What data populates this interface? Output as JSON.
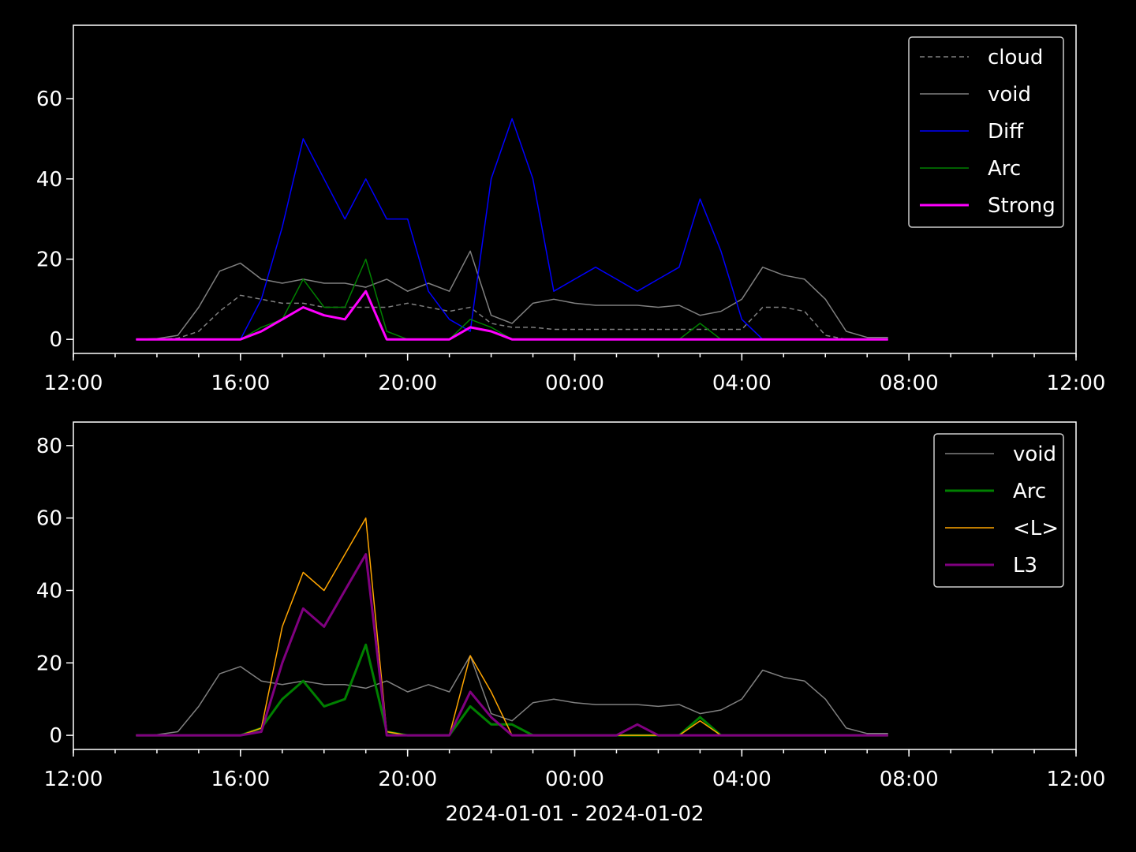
{
  "chart_data": [
    {
      "type": "line",
      "xlim": [
        "2024-01-01T12:00",
        "2024-01-02T12:00"
      ],
      "xticks": [
        {
          "value": "2024-01-01T12:00",
          "label": "12:00"
        },
        {
          "value": "2024-01-01T16:00",
          "label": "16:00"
        },
        {
          "value": "2024-01-01T20:00",
          "label": "20:00"
        },
        {
          "value": "2024-01-02T00:00",
          "label": "00:00"
        },
        {
          "value": "2024-01-02T04:00",
          "label": "04:00"
        },
        {
          "value": "2024-01-02T08:00",
          "label": "08:00"
        },
        {
          "value": "2024-01-02T12:00",
          "label": "12:00"
        }
      ],
      "ylim": [
        -3.5,
        78.3
      ],
      "yticks": [
        0,
        20,
        40,
        60
      ],
      "legend": "upper right",
      "x": [
        "2024-01-01T13:30",
        "2024-01-01T14:00",
        "2024-01-01T14:30",
        "2024-01-01T15:00",
        "2024-01-01T15:30",
        "2024-01-01T16:00",
        "2024-01-01T16:30",
        "2024-01-01T17:00",
        "2024-01-01T17:30",
        "2024-01-01T18:00",
        "2024-01-01T18:30",
        "2024-01-01T19:00",
        "2024-01-01T19:30",
        "2024-01-01T20:00",
        "2024-01-01T20:30",
        "2024-01-01T21:00",
        "2024-01-01T21:30",
        "2024-01-01T22:00",
        "2024-01-01T22:30",
        "2024-01-01T23:00",
        "2024-01-01T23:30",
        "2024-01-02T00:00",
        "2024-01-02T00:30",
        "2024-01-02T01:00",
        "2024-01-02T01:30",
        "2024-01-02T02:00",
        "2024-01-02T02:30",
        "2024-01-02T03:00",
        "2024-01-02T03:30",
        "2024-01-02T04:00",
        "2024-01-02T04:30",
        "2024-01-02T05:00",
        "2024-01-02T05:30",
        "2024-01-02T06:00",
        "2024-01-02T06:30",
        "2024-01-02T07:00",
        "2024-01-02T07:30"
      ],
      "series": [
        {
          "name": "cloud",
          "color": "#808080",
          "linestyle": "dashed",
          "linewidth": 1.5,
          "values": [
            0,
            0,
            0.3,
            2,
            7,
            11,
            10,
            9,
            9,
            8,
            8,
            8,
            8,
            9,
            8,
            7,
            8,
            4,
            3,
            3,
            2.5,
            2.5,
            2.5,
            2.5,
            2.5,
            2.5,
            2.5,
            2.5,
            2.5,
            2.5,
            8,
            8,
            7,
            1,
            0,
            0,
            0
          ]
        },
        {
          "name": "void",
          "color": "#808080",
          "linestyle": "solid",
          "linewidth": 1.5,
          "values": [
            0,
            0.2,
            1,
            8,
            17,
            19,
            15,
            14,
            15,
            14,
            14,
            13,
            15,
            12,
            14,
            12,
            22,
            6,
            4,
            9,
            10,
            9,
            8.5,
            8.5,
            8.5,
            8,
            8.5,
            6,
            7,
            10,
            18,
            16,
            15,
            10,
            2,
            0.5,
            0.5
          ]
        },
        {
          "name": "Diff",
          "color": "#0000ff",
          "linestyle": "solid",
          "linewidth": 1.5,
          "values": [
            0,
            0,
            0,
            0,
            0,
            0,
            10,
            28,
            50,
            40,
            30,
            40,
            30,
            30,
            12,
            5,
            2,
            40,
            55,
            40,
            12,
            15,
            18,
            15,
            12,
            15,
            18,
            35,
            22,
            5,
            0,
            0,
            0,
            0,
            0,
            0,
            0
          ]
        },
        {
          "name": "Arc",
          "color": "#008000",
          "linestyle": "solid",
          "linewidth": 1.5,
          "values": [
            0,
            0,
            0,
            0,
            0,
            0,
            3,
            5,
            15,
            8,
            8,
            20,
            2,
            0,
            0,
            0,
            5,
            3,
            0,
            0,
            0,
            0,
            0,
            0,
            0,
            0,
            0,
            4,
            0,
            0,
            0,
            0,
            0,
            0,
            0,
            0,
            0
          ]
        },
        {
          "name": "Strong",
          "color": "#ff00ff",
          "linestyle": "solid",
          "linewidth": 3,
          "values": [
            0,
            0,
            0,
            0,
            0,
            0,
            2,
            5,
            8,
            6,
            5,
            12,
            0,
            0,
            0,
            0,
            3,
            2,
            0,
            0,
            0,
            0,
            0,
            0,
            0,
            0,
            0,
            0,
            0,
            0,
            0,
            0,
            0,
            0,
            0,
            0,
            0
          ]
        }
      ]
    },
    {
      "type": "line",
      "xlim": [
        "2024-01-01T12:00",
        "2024-01-02T12:00"
      ],
      "xticks": [
        {
          "value": "2024-01-01T12:00",
          "label": "12:00"
        },
        {
          "value": "2024-01-01T16:00",
          "label": "16:00"
        },
        {
          "value": "2024-01-01T20:00",
          "label": "20:00"
        },
        {
          "value": "2024-01-02T00:00",
          "label": "00:00"
        },
        {
          "value": "2024-01-02T04:00",
          "label": "04:00"
        },
        {
          "value": "2024-01-02T08:00",
          "label": "08:00"
        },
        {
          "value": "2024-01-02T12:00",
          "label": "12:00"
        }
      ],
      "ylim": [
        -3.9,
        86.5
      ],
      "yticks": [
        0,
        20,
        40,
        60,
        80
      ],
      "legend": "upper right",
      "x_label": "2024-01-01 - 2024-01-02",
      "x": [
        "2024-01-01T13:30",
        "2024-01-01T14:00",
        "2024-01-01T14:30",
        "2024-01-01T15:00",
        "2024-01-01T15:30",
        "2024-01-01T16:00",
        "2024-01-01T16:30",
        "2024-01-01T17:00",
        "2024-01-01T17:30",
        "2024-01-01T18:00",
        "2024-01-01T18:30",
        "2024-01-01T19:00",
        "2024-01-01T19:30",
        "2024-01-01T20:00",
        "2024-01-01T20:30",
        "2024-01-01T21:00",
        "2024-01-01T21:30",
        "2024-01-01T22:00",
        "2024-01-01T22:30",
        "2024-01-01T23:00",
        "2024-01-01T23:30",
        "2024-01-02T00:00",
        "2024-01-02T00:30",
        "2024-01-02T01:00",
        "2024-01-02T01:30",
        "2024-01-02T02:00",
        "2024-01-02T02:30",
        "2024-01-02T03:00",
        "2024-01-02T03:30",
        "2024-01-02T04:00",
        "2024-01-02T04:30",
        "2024-01-02T05:00",
        "2024-01-02T05:30",
        "2024-01-02T06:00",
        "2024-01-02T06:30",
        "2024-01-02T07:00",
        "2024-01-02T07:30"
      ],
      "series": [
        {
          "name": "void",
          "color": "#808080",
          "linestyle": "solid",
          "linewidth": 1.5,
          "values": [
            0,
            0.2,
            1,
            8,
            17,
            19,
            15,
            14,
            15,
            14,
            14,
            13,
            15,
            12,
            14,
            12,
            22,
            6,
            4,
            9,
            10,
            9,
            8.5,
            8.5,
            8.5,
            8,
            8.5,
            6,
            7,
            10,
            18,
            16,
            15,
            10,
            2,
            0.5,
            0.5
          ]
        },
        {
          "name": "Arc",
          "color": "#008000",
          "linestyle": "solid",
          "linewidth": 3,
          "values": [
            0,
            0,
            0,
            0,
            0,
            0,
            2,
            10,
            15,
            8,
            10,
            25,
            1,
            0,
            0,
            0,
            8,
            3,
            3,
            0,
            0,
            0,
            0,
            0,
            0,
            0,
            0,
            5,
            0,
            0,
            0,
            0,
            0,
            0,
            0,
            0,
            0
          ]
        },
        {
          "name": "<L>",
          "color": "#ffa500",
          "linestyle": "solid",
          "linewidth": 1.5,
          "values": [
            0,
            0,
            0,
            0,
            0,
            0,
            2,
            30,
            45,
            40,
            50,
            60,
            1,
            0,
            0,
            0,
            22,
            12,
            0,
            0,
            0,
            0,
            0,
            0,
            0,
            0,
            0,
            4,
            0,
            0,
            0,
            0,
            0,
            0,
            0,
            0,
            0
          ]
        },
        {
          "name": "L3",
          "color": "#800080",
          "linestyle": "solid",
          "linewidth": 3,
          "values": [
            0,
            0,
            0,
            0,
            0,
            0,
            1,
            20,
            35,
            30,
            40,
            50,
            0,
            0,
            0,
            0,
            12,
            5,
            0,
            0,
            0,
            0,
            0,
            0,
            3,
            0,
            0,
            0,
            0,
            0,
            0,
            0,
            0,
            0,
            0,
            0,
            0
          ]
        }
      ]
    }
  ]
}
